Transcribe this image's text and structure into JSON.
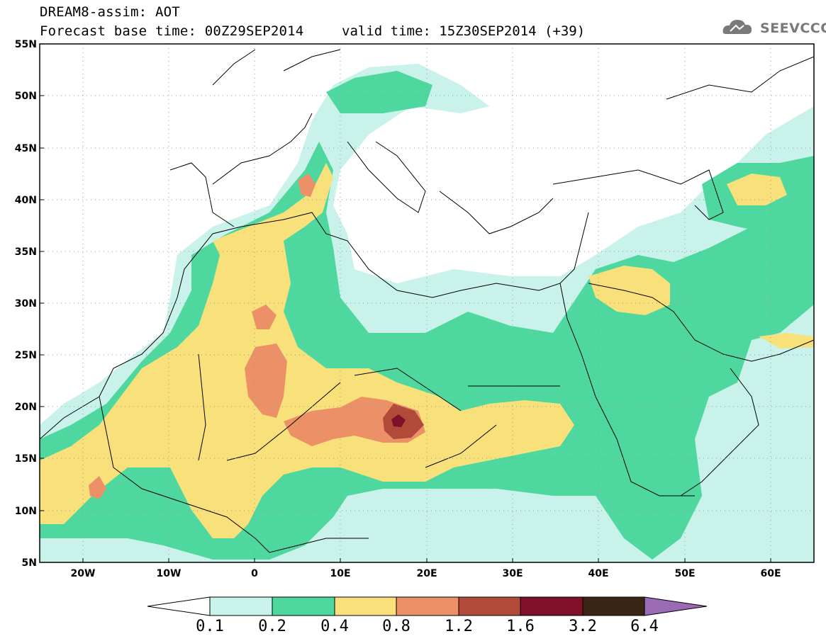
{
  "header": {
    "line1": "DREAM8-assim: AOT",
    "line2": "Forecast base time: 00Z29SEP2014",
    "valid": "valid time: 15Z30SEP2014 (+39)",
    "logo": "SEEVCCC"
  },
  "axes": {
    "lat_labels": [
      "55N",
      "50N",
      "45N",
      "40N",
      "35N",
      "30N",
      "25N",
      "20N",
      "15N",
      "10N",
      "5N"
    ],
    "lon_labels": [
      "20W",
      "10W",
      "0",
      "10E",
      "20E",
      "30E",
      "40E",
      "50E",
      "60E"
    ]
  },
  "colorbar": {
    "labels": [
      "0.1",
      "0.2",
      "0.4",
      "0.8",
      "1.2",
      "1.6",
      "3.2",
      "6.4"
    ],
    "colors": [
      "#c8f2ea",
      "#4ed8a0",
      "#f8e07a",
      "#ec9068",
      "#b24a3a",
      "#80102a",
      "#3a2414",
      "#9a6ab4"
    ]
  },
  "legend_colors": {
    "low": "#c8f2ea",
    "moderate": "#4ed8a0",
    "mid": "#f8e07a",
    "high": "#ec9068",
    "very_high": "#b24a3a",
    "extreme": "#80102a"
  }
}
